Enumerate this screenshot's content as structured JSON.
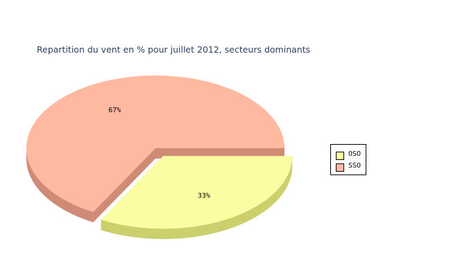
{
  "chart_data": {
    "type": "pie",
    "title": "Repartition du vent en % pour juillet 2012, secteurs dominants",
    "slices": [
      {
        "label": "OSO",
        "value": 33,
        "value_label": "33%",
        "color": "#fafda2",
        "side_color": "#cbd06c",
        "exploded": true
      },
      {
        "label": "SSO",
        "value": 67,
        "value_label": "67%",
        "color": "#ffb9a0",
        "side_color": "#d08b76",
        "exploded": false
      }
    ],
    "legend_position": "right",
    "style": "3d"
  }
}
